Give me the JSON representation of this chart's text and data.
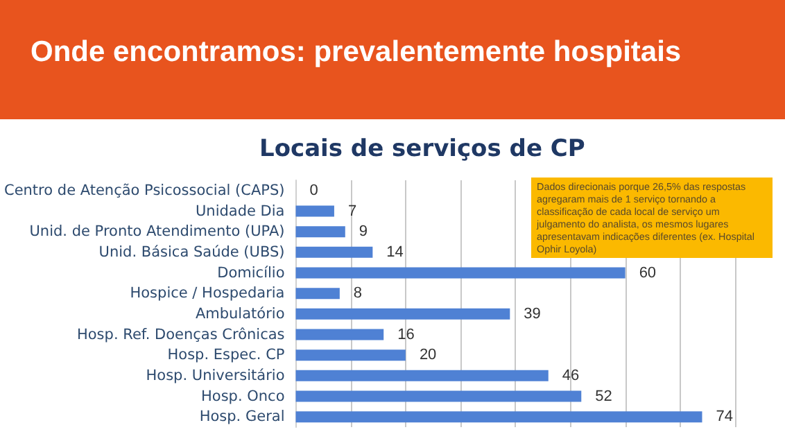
{
  "chart_data": {
    "type": "bar",
    "orientation": "horizontal",
    "title": "Onde encontramos: prevalentemente hospitais",
    "subtitle": "Locais de serviços de CP",
    "categories": [
      "Centro de Atenção Psicossocial (CAPS)",
      "Unidade Dia",
      "Unid. de Pronto Atendimento (UPA)",
      "Unid. Básica Saúde (UBS)",
      "Domicílio",
      "Hospice / Hospedaria",
      "Ambulatório",
      "Hosp. Ref. Doenças Crônicas",
      "Hosp. Espec. CP",
      "Hosp. Universitário",
      "Hosp. Onco",
      "Hosp. Geral"
    ],
    "values": [
      0,
      7,
      9,
      14,
      60,
      8,
      39,
      16,
      20,
      46,
      52,
      74
    ],
    "color": "#4f81d4",
    "data_labels": true,
    "grid": "x",
    "tick_labels": "y",
    "annotations": [
      "Dados direcionais porque 26,5% das respostas agregaram mais de 1 serviço tornando a classificação de cada local de serviço um julgamento do analista, os mesmos lugares apresentavam indicações diferentes (ex. Hospital Ophir Loyola)"
    ]
  }
}
